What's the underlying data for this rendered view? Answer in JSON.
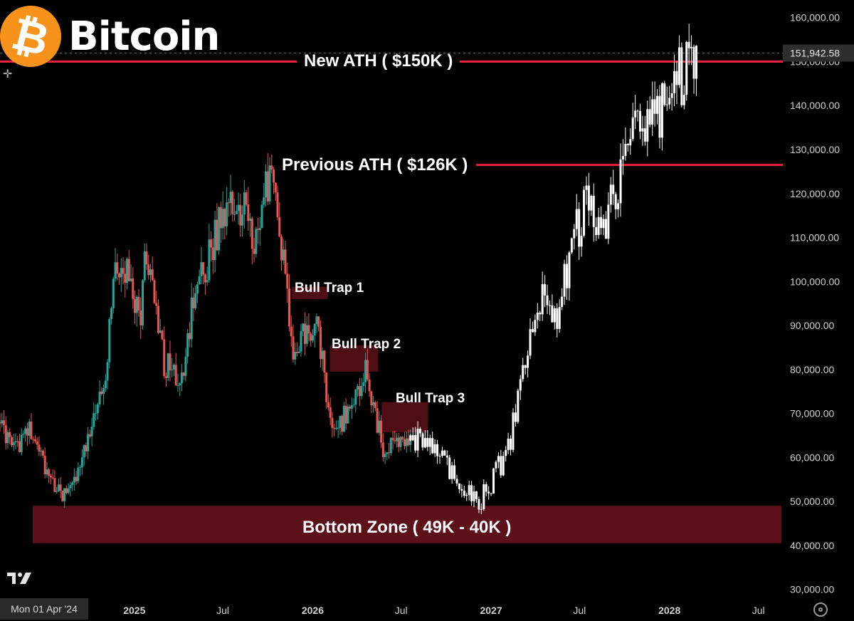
{
  "brand": {
    "title": "Bitcoin",
    "logo_glyph": "₿",
    "logo_icon": "bitcoin-logo-icon",
    "logo_color": "#f7931a"
  },
  "chart_data": {
    "type": "candlestick",
    "x_ticks": [
      "2025",
      "Jul",
      "2026",
      "Jul",
      "2027",
      "Jul",
      "2028",
      "Jul"
    ],
    "y_ticks": [
      30000,
      40000,
      50000,
      60000,
      70000,
      80000,
      90000,
      100000,
      110000,
      120000,
      130000,
      140000,
      150000,
      160000
    ],
    "y_tick_labels": [
      "30,000.00",
      "40,000.00",
      "50,000.00",
      "60,000.00",
      "70,000.00",
      "80,000.00",
      "90,000.00",
      "100,000.00",
      "110,000.00",
      "120,000.00",
      "130,000.00",
      "140,000.00",
      "150,000.00",
      "160,000.00"
    ],
    "ylim": [
      28000,
      164000
    ],
    "x_start": "2024-04-01",
    "x_end": "2028-08-20",
    "current_price": {
      "value": 151942.58,
      "label": "151,942.58"
    },
    "colors": {
      "up": "#26a69a",
      "down": "#ef5350",
      "projection": "#ffffff",
      "zone": "#5c1019",
      "level_line": "#e8213c"
    },
    "levels": [
      {
        "label": "New ATH ( $150K )",
        "price": 150000
      },
      {
        "label": "Previous ATH ( $126K )",
        "price": 126500
      }
    ],
    "zones": [
      {
        "label": "Bull Trap 1",
        "start": "2025-11-19",
        "end": "2026-02-01",
        "low": 96000,
        "high": 98800
      },
      {
        "label": "Bull Trap 2",
        "start": "2026-02-05",
        "end": "2026-05-15",
        "low": 79500,
        "high": 85500
      },
      {
        "label": "Bull Trap 3",
        "start": "2026-05-22",
        "end": "2026-08-25",
        "low": 65700,
        "high": 72600
      }
    ],
    "bottom_zone": {
      "label": "Bottom Zone ( 49K - 40K )",
      "low": 40500,
      "high": 49000
    },
    "historical_path": [
      [
        "2024-04-01",
        68000
      ],
      [
        "2024-05-01",
        61000
      ],
      [
        "2024-06-01",
        67000
      ],
      [
        "2024-07-01",
        58000
      ],
      [
        "2024-08-05",
        51000
      ],
      [
        "2024-09-06",
        56000
      ],
      [
        "2024-10-01",
        65000
      ],
      [
        "2024-11-01",
        78000
      ],
      [
        "2024-11-20",
        100000
      ],
      [
        "2024-12-17",
        104000
      ],
      [
        "2025-01-13",
        90000
      ],
      [
        "2025-01-20",
        106000
      ],
      [
        "2025-02-15",
        94000
      ],
      [
        "2025-03-01",
        82000
      ],
      [
        "2025-04-07",
        77000
      ],
      [
        "2025-05-01",
        95000
      ],
      [
        "2025-06-01",
        105000
      ],
      [
        "2025-07-14",
        120000
      ],
      [
        "2025-08-01",
        113000
      ],
      [
        "2025-08-14",
        122000
      ],
      [
        "2025-09-01",
        108000
      ],
      [
        "2025-10-06",
        125000
      ],
      [
        "2025-11-01",
        106000
      ],
      [
        "2025-11-21",
        84000
      ],
      [
        "2025-12-15",
        88000
      ],
      [
        "2026-01-10",
        90000
      ],
      [
        "2026-02-10",
        66000
      ],
      [
        "2026-03-01",
        68000
      ],
      [
        "2026-03-20",
        72000
      ],
      [
        "2026-04-20",
        80000
      ],
      [
        "2026-05-25",
        62000
      ],
      [
        "2026-06-20",
        64000
      ],
      [
        "2026-07-20",
        65000
      ]
    ],
    "projection_path": [
      [
        "2026-07-20",
        65000
      ],
      [
        "2026-09-20",
        60000
      ],
      [
        "2026-11-05",
        52000
      ],
      [
        "2026-12-10",
        50000
      ],
      [
        "2027-01-10",
        56000
      ],
      [
        "2027-02-10",
        64000
      ],
      [
        "2027-03-10",
        82000
      ],
      [
        "2027-04-15",
        96000
      ],
      [
        "2027-05-15",
        92000
      ],
      [
        "2027-06-15",
        108000
      ],
      [
        "2027-07-15",
        118000
      ],
      [
        "2027-08-15",
        112000
      ],
      [
        "2027-09-15",
        120000
      ],
      [
        "2027-10-10",
        130000
      ],
      [
        "2027-11-05",
        138000
      ],
      [
        "2027-12-05",
        135000
      ],
      [
        "2028-01-01",
        146000
      ],
      [
        "2028-02-05",
        148000
      ],
      [
        "2028-02-25",
        151900
      ]
    ]
  },
  "bottom_bar": {
    "date_label": "Mon 01 Apr '24",
    "brand_mark": "tradingview-logo-icon",
    "settings_icon": "gear-icon"
  }
}
